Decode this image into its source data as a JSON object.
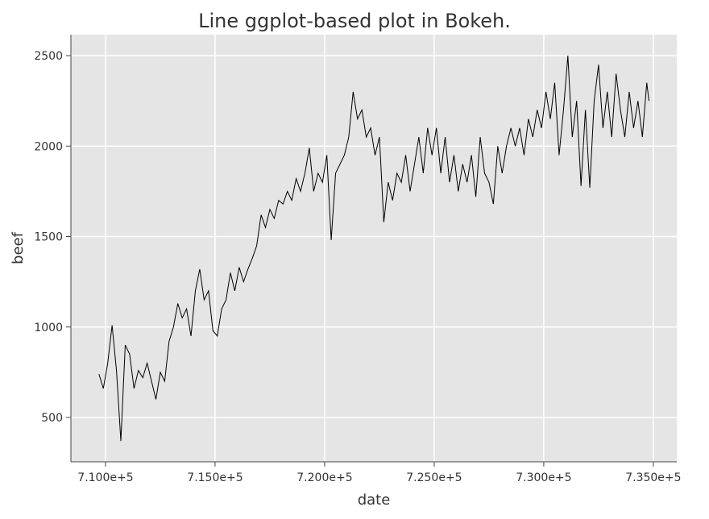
{
  "chart_data": {
    "type": "line",
    "title": "Line ggplot-based plot in Bokeh.",
    "x_label": "date",
    "y_label": "beef",
    "xlim": [
      708420,
      736070
    ],
    "ylim": [
      255,
      2616
    ],
    "xticks": [
      {
        "value": 710000,
        "label": "7.100e+5"
      },
      {
        "value": 715000,
        "label": "7.150e+5"
      },
      {
        "value": 720000,
        "label": "7.200e+5"
      },
      {
        "value": 725000,
        "label": "7.250e+5"
      },
      {
        "value": 730000,
        "label": "7.300e+5"
      },
      {
        "value": 735000,
        "label": "7.350e+5"
      }
    ],
    "yticks": [
      500,
      1000,
      1500,
      2000,
      2500
    ],
    "grid": true,
    "series": [
      {
        "color": "#000000",
        "x": [
          709700,
          709900,
          710100,
          710300,
          710500,
          710700,
          710900,
          711100,
          711300,
          711500,
          711700,
          711900,
          712100,
          712300,
          712500,
          712700,
          712900,
          713100,
          713300,
          713500,
          713700,
          713900,
          714100,
          714300,
          714500,
          714700,
          714900,
          715100,
          715300,
          715500,
          715700,
          715900,
          716100,
          716300,
          716500,
          716700,
          716900,
          717100,
          717300,
          717500,
          717700,
          717900,
          718100,
          718300,
          718500,
          718700,
          718900,
          719100,
          719300,
          719500,
          719700,
          719900,
          720100,
          720300,
          720500,
          720700,
          720900,
          721100,
          721300,
          721500,
          721700,
          721900,
          722100,
          722300,
          722500,
          722700,
          722900,
          723100,
          723300,
          723500,
          723700,
          723900,
          724100,
          724300,
          724500,
          724700,
          724900,
          725100,
          725300,
          725500,
          725700,
          725900,
          726100,
          726300,
          726500,
          726700,
          726900,
          727100,
          727300,
          727500,
          727700,
          727900,
          728100,
          728300,
          728500,
          728700,
          728900,
          729100,
          729300,
          729500,
          729700,
          729900,
          730100,
          730300,
          730500,
          730700,
          730900,
          731100,
          731300,
          731500,
          731700,
          731900,
          732100,
          732300,
          732500,
          732700,
          732900,
          733100,
          733300,
          733500,
          733700,
          733900,
          734100,
          734300,
          734500,
          734700,
          734800
        ],
        "values": [
          740,
          660,
          800,
          1010,
          760,
          370,
          900,
          850,
          660,
          760,
          720,
          800,
          700,
          600,
          750,
          700,
          920,
          1000,
          1130,
          1050,
          1100,
          950,
          1200,
          1320,
          1150,
          1200,
          980,
          950,
          1100,
          1150,
          1300,
          1200,
          1330,
          1250,
          1320,
          1380,
          1450,
          1620,
          1550,
          1650,
          1600,
          1700,
          1680,
          1750,
          1700,
          1820,
          1750,
          1850,
          1990,
          1750,
          1850,
          1800,
          1950,
          1480,
          1850,
          1900,
          1950,
          2050,
          2300,
          2150,
          2200,
          2050,
          2100,
          1950,
          2050,
          1580,
          1800,
          1700,
          1850,
          1800,
          1950,
          1750,
          1900,
          2050,
          1850,
          2100,
          1950,
          2100,
          1850,
          2050,
          1800,
          1950,
          1750,
          1900,
          1800,
          1950,
          1720,
          2050,
          1850,
          1800,
          1680,
          2000,
          1850,
          2000,
          2100,
          2000,
          2100,
          1950,
          2150,
          2050,
          2200,
          2100,
          2300,
          2150,
          2350,
          1950,
          2200,
          2500,
          2050,
          2250,
          1780,
          2200,
          1770,
          2250,
          2450,
          2100,
          2300,
          2050,
          2400,
          2200,
          2050,
          2300,
          2100,
          2250,
          2050,
          2350,
          2250
        ]
      }
    ]
  }
}
